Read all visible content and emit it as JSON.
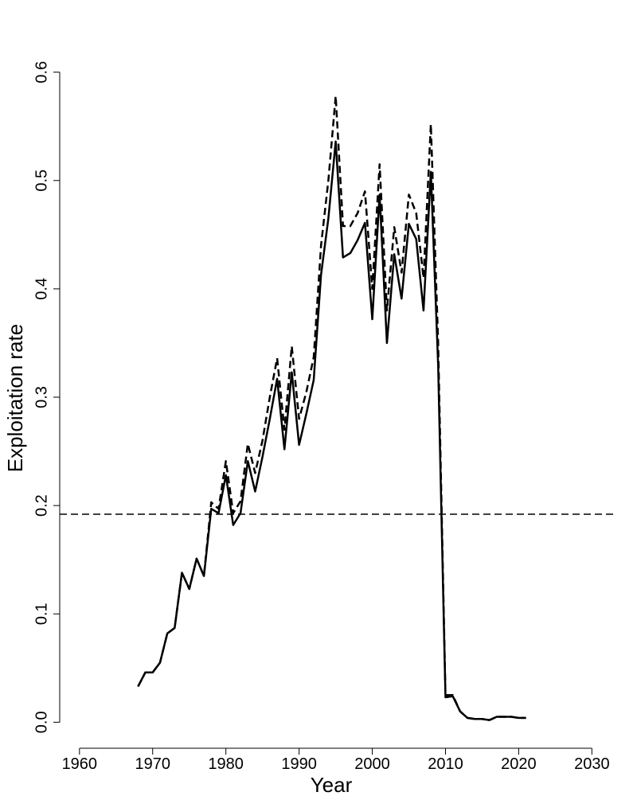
{
  "chart_data": {
    "type": "line",
    "x_label": "Year",
    "y_label": "Exploitation rate",
    "x": [
      1968,
      1969,
      1970,
      1971,
      1972,
      1973,
      1974,
      1975,
      1976,
      1977,
      1978,
      1979,
      1980,
      1981,
      1982,
      1983,
      1984,
      1985,
      1986,
      1987,
      1988,
      1989,
      1990,
      1991,
      1992,
      1993,
      1994,
      1995,
      1996,
      1997,
      1998,
      1999,
      2000,
      2001,
      2002,
      2003,
      2004,
      2005,
      2006,
      2007,
      2008,
      2009,
      2010,
      2011,
      2012,
      2013,
      2014,
      2015,
      2016,
      2017,
      2018,
      2019,
      2020,
      2021
    ],
    "series": [
      {
        "color": "#000000",
        "dashed": false,
        "values": [
          0.033,
          0.046,
          0.046,
          0.055,
          0.082,
          0.087,
          0.138,
          0.123,
          0.151,
          0.135,
          0.197,
          0.193,
          0.228,
          0.182,
          0.193,
          0.241,
          0.213,
          0.245,
          0.28,
          0.317,
          0.252,
          0.323,
          0.256,
          0.285,
          0.316,
          0.413,
          0.465,
          0.536,
          0.429,
          0.433,
          0.445,
          0.461,
          0.372,
          0.487,
          0.35,
          0.432,
          0.391,
          0.46,
          0.446,
          0.38,
          0.508,
          0.329,
          0.023,
          0.024,
          0.01,
          0.004,
          0.003,
          0.003,
          0.002,
          0.005,
          0.005,
          0.005,
          0.004,
          0.004
        ]
      },
      {
        "color": "#000000",
        "dashed": true,
        "values": [
          0.033,
          0.046,
          0.046,
          0.055,
          0.082,
          0.087,
          0.138,
          0.123,
          0.151,
          0.135,
          0.203,
          0.197,
          0.241,
          0.193,
          0.204,
          0.257,
          0.23,
          0.26,
          0.3,
          0.336,
          0.27,
          0.347,
          0.28,
          0.305,
          0.337,
          0.44,
          0.5,
          0.578,
          0.458,
          0.458,
          0.47,
          0.49,
          0.4,
          0.515,
          0.38,
          0.457,
          0.415,
          0.487,
          0.47,
          0.41,
          0.552,
          0.35,
          0.025,
          0.025,
          0.01,
          0.004,
          0.003,
          0.003,
          0.002,
          0.005,
          0.005,
          0.005,
          0.004,
          0.004
        ]
      }
    ],
    "hline": 0.192,
    "xlim": [
      1957.3,
      2032.9
    ],
    "ylim": [
      -0.024,
      0.624
    ],
    "xticks": [
      1960,
      1970,
      1980,
      1990,
      2000,
      2010,
      2020,
      2030
    ],
    "yticks": [
      {
        "value": 0,
        "label": "0.0"
      },
      0.1,
      0.2,
      0.3,
      0.4,
      0.5,
      0.6
    ]
  }
}
